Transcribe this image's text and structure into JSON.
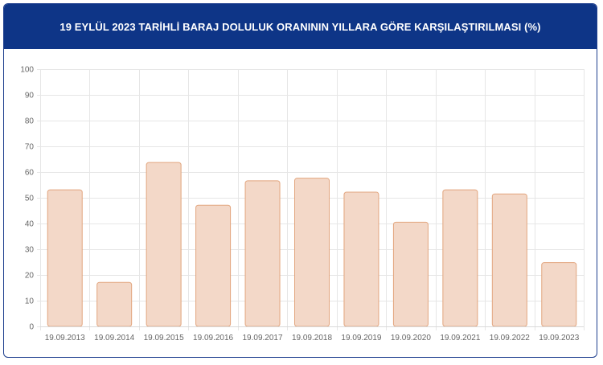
{
  "title": "19 EYLÜL 2023 TARİHLİ BARAJ DOLULUK ORANININ YILLARA GÖRE KARŞILAŞTIRILMASI (%)",
  "chart_data": {
    "type": "bar",
    "title": "19 EYLÜL 2023 TARİHLİ BARAJ DOLULUK ORANININ YILLARA GÖRE KARŞILAŞTIRILMASI (%)",
    "categories": [
      "19.09.2013",
      "19.09.2014",
      "19.09.2015",
      "19.09.2016",
      "19.09.2017",
      "19.09.2018",
      "19.09.2019",
      "19.09.2020",
      "19.09.2021",
      "19.09.2022",
      "19.09.2023"
    ],
    "values": [
      53.1,
      17.1,
      63.7,
      47.1,
      56.6,
      57.6,
      52.2,
      40.5,
      53.1,
      51.5,
      24.8
    ],
    "ylim": [
      0,
      100
    ],
    "yticks": [
      0,
      10,
      20,
      30,
      40,
      50,
      60,
      70,
      80,
      90,
      100
    ],
    "xlabel": "",
    "ylabel": "",
    "grid": true,
    "legend": "none",
    "colors": {
      "bar_fill": "#f3d8c8",
      "bar_stroke": "#e2a57e",
      "grid": "#e6e6e6",
      "header_bg": "#0e3587"
    }
  }
}
